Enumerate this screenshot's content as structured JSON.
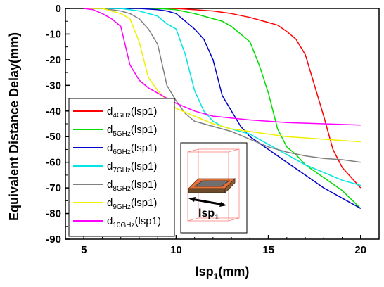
{
  "chart_data": {
    "type": "line",
    "xlabel": "lsp",
    "xlabel_sub": "1",
    "xlabel_unit": "(mm)",
    "ylabel": "Equivalent Distance Delay(mm)",
    "xlim": [
      4,
      21
    ],
    "ylim": [
      -90,
      0
    ],
    "xticks": [
      5,
      10,
      15,
      20
    ],
    "yticks": [
      0,
      -10,
      -20,
      -30,
      -40,
      -50,
      -60,
      -70,
      -80,
      -90
    ],
    "grid": false,
    "legend_position": "left",
    "series": [
      {
        "name": "d",
        "sub": "4GHz",
        "suffix": "(lsp1)",
        "color": "#ff0000",
        "x": [
          5,
          7,
          9,
          10,
          11,
          12,
          13,
          14,
          15,
          15.5,
          16,
          16.5,
          17,
          17.5,
          18,
          18.5,
          19,
          19.5,
          20
        ],
        "y": [
          0,
          0,
          0,
          0,
          -0.5,
          -1,
          -2,
          -3.5,
          -5.5,
          -6.5,
          -9,
          -12,
          -18,
          -30,
          -42,
          -55,
          -62,
          -66,
          -70
        ]
      },
      {
        "name": "d",
        "sub": "5GHz",
        "suffix": "(lsp1)",
        "color": "#00dd00",
        "x": [
          5,
          7,
          9,
          10,
          11,
          12,
          12.5,
          13,
          13.5,
          14,
          14.5,
          15,
          15.5,
          16,
          16.5,
          17,
          18,
          19,
          20
        ],
        "y": [
          0,
          0,
          0,
          -0.5,
          -2,
          -4,
          -5,
          -7,
          -10,
          -13,
          -22,
          -33,
          -47,
          -54,
          -57,
          -61,
          -66,
          -71,
          -78
        ]
      },
      {
        "name": "d",
        "sub": "6GHz",
        "suffix": "(lsp1)",
        "color": "#0000cc",
        "x": [
          5,
          7,
          8,
          9,
          9.5,
          10,
          10.5,
          11,
          11.5,
          12,
          12.5,
          13,
          13.5,
          14,
          15,
          16,
          17,
          18,
          19,
          20
        ],
        "y": [
          0,
          0,
          0,
          -0.5,
          -1,
          -2,
          -5,
          -8,
          -12,
          -20,
          -34,
          -40,
          -46,
          -50,
          -55,
          -60,
          -65,
          -70,
          -74,
          -78
        ]
      },
      {
        "name": "d",
        "sub": "7GHz",
        "suffix": "(lsp1)",
        "color": "#00e5e5",
        "x": [
          5,
          7,
          8,
          9,
          9.5,
          10,
          10.5,
          11,
          11.5,
          12,
          12.5,
          13,
          14,
          15,
          16,
          17,
          18,
          19,
          20
        ],
        "y": [
          0,
          0,
          -1,
          -3,
          -6,
          -8,
          -18,
          -32,
          -40,
          -44,
          -46,
          -47,
          -49,
          -53,
          -57,
          -61,
          -64,
          -67,
          -69
        ]
      },
      {
        "name": "d",
        "sub": "8GHz",
        "suffix": "(lsp1)",
        "color": "#808080",
        "x": [
          5,
          6,
          7,
          7.5,
          8,
          8.5,
          9,
          9.5,
          10,
          10.5,
          11,
          12,
          13,
          14,
          15,
          16,
          17,
          18,
          19,
          20
        ],
        "y": [
          0,
          0,
          -1,
          -2,
          -4,
          -8,
          -14,
          -30,
          -36,
          -41,
          -44,
          -46,
          -48,
          -51,
          -54,
          -56,
          -57.5,
          -58.5,
          -59,
          -60
        ]
      },
      {
        "name": "d",
        "sub": "9GHz",
        "suffix": "(lsp1)",
        "color": "#f0f000",
        "x": [
          5,
          6,
          6.5,
          7,
          7.5,
          8,
          8.5,
          9,
          9.5,
          10,
          11,
          12,
          13,
          14,
          15,
          16,
          17,
          18,
          19,
          20
        ],
        "y": [
          0,
          0,
          -1,
          -2,
          -4,
          -13,
          -27,
          -32,
          -36,
          -39,
          -42,
          -45,
          -47,
          -48,
          -49,
          -50,
          -50.5,
          -51,
          -51.5,
          -52
        ]
      },
      {
        "name": "d",
        "sub": "10GHz",
        "suffix": "(lsp1)",
        "color": "#ff00ff",
        "x": [
          5,
          5.5,
          6,
          6.5,
          7,
          7.5,
          8,
          8.5,
          9,
          9.5,
          10,
          11,
          12,
          14,
          16,
          18,
          20
        ],
        "y": [
          0,
          -0.5,
          -2,
          -4,
          -7,
          -22,
          -28,
          -31,
          -33,
          -35,
          -37,
          -40,
          -42,
          -43.5,
          -44.5,
          -45,
          -45.5
        ]
      }
    ],
    "inset": {
      "label": "lsp",
      "label_sub": "1"
    }
  }
}
